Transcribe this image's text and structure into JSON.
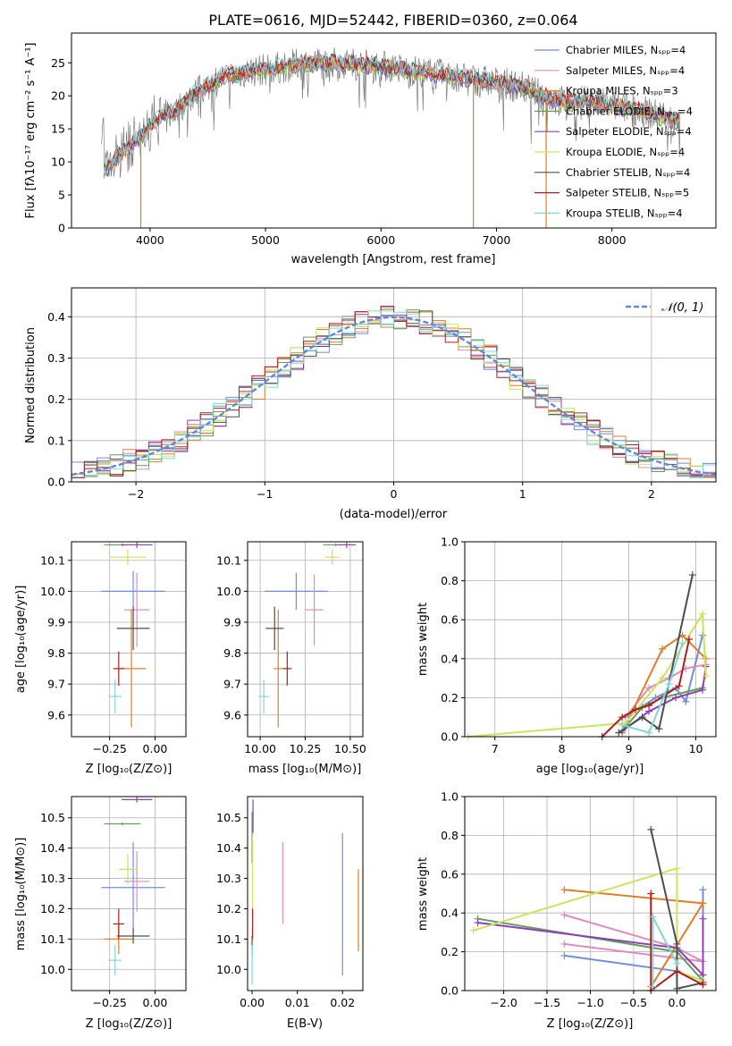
{
  "colors": [
    "#6d8fd8",
    "#e08bbf",
    "#de7f28",
    "#5f9e5b",
    "#8f3fb3",
    "#c9e55a",
    "#4d4d4d",
    "#b51c1c",
    "#7fd8d8"
  ],
  "chart_data": [
    {
      "id": "spectrum",
      "type": "line",
      "title": "PLATE=0616, MJD=52442, FIBERID=0360, z=0.064",
      "xlabel": "wavelength [Angstrom, rest frame]",
      "ylabel": "Flux [fλ10⁻¹⁷ erg cm⁻² s⁻¹ A⁻¹]",
      "xlim": [
        3320,
        8900
      ],
      "ylim": [
        0,
        29.5
      ],
      "xticks": [
        4000,
        5000,
        6000,
        7000,
        8000
      ],
      "yticks": [
        0,
        5,
        10,
        15,
        20,
        25
      ],
      "legend_position": "right",
      "legend": [
        "Chabrier MILES, Nₛₚₚ=4",
        "Salpeter MILES, Nₛₚₚ=4",
        "Kroupa MILES, Nₛₚₚ=3",
        "Chabrier ELODIE, Nₛₚₚ=4",
        "Salpeter ELODIE, Nₛₚₚ=4",
        "Kroupa ELODIE, Nₛₚₚ=4",
        "Chabrier STELIB, Nₛₚₚ=4",
        "Salpeter STELIB, Nₛₚₚ=5",
        "Kroupa STELIB, Nₛₚₚ=4"
      ],
      "continuum": {
        "x": [
          3600,
          3700,
          3800,
          3900,
          4000,
          4100,
          4200,
          4300,
          4400,
          4500,
          4600,
          4800,
          5000,
          5200,
          5400,
          5600,
          5800,
          6000,
          6200,
          6400,
          6600,
          6800,
          7000,
          7200,
          7400,
          7600,
          7800,
          8000,
          8200,
          8400,
          8600
        ],
        "y": [
          8.5,
          10.5,
          12.2,
          13.5,
          15.5,
          17.0,
          17.5,
          19.0,
          20.5,
          21.5,
          22.5,
          23.5,
          24.0,
          24.5,
          25.0,
          25.0,
          24.8,
          24.5,
          24.0,
          23.5,
          23.0,
          22.5,
          22.0,
          21.5,
          20.0,
          19.0,
          19.2,
          18.5,
          18.0,
          17.0,
          16.0
        ]
      },
      "dips": [
        {
          "series": "Kroupa MILES",
          "x": 3920,
          "y": 0
        },
        {
          "series": "Kroupa MILES",
          "x": 6800,
          "y": 0
        },
        {
          "series": "Kroupa MILES",
          "x": 7430,
          "y": 0
        }
      ]
    },
    {
      "id": "residuals",
      "type": "histogram",
      "xlabel": "(data-model)/error",
      "ylabel": "Normed distribution",
      "xlim": [
        -2.5,
        2.5
      ],
      "ylim": [
        0,
        0.47
      ],
      "xticks": [
        -2,
        -1,
        0,
        1,
        2
      ],
      "yticks": [
        0.0,
        0.1,
        0.2,
        0.3,
        0.4
      ],
      "grid": true,
      "reference_curve": "𝒩(0, 1)",
      "legend_position": "top-right",
      "bin_width": 0.1
    },
    {
      "id": "age-vs-Z",
      "type": "scatter",
      "xlabel": "Z [log₁₀(Z/Z⊙)]",
      "ylabel": "age  [log₁₀(age/yr)]",
      "xlim": [
        -0.46,
        0.17
      ],
      "ylim": [
        9.53,
        10.16
      ],
      "xticks": [
        -0.25,
        0.0
      ],
      "yticks": [
        9.6,
        9.7,
        9.8,
        9.9,
        10.0,
        10.1
      ],
      "grid": true,
      "points": [
        {
          "x": -0.12,
          "y": 10.0,
          "xerr": 0.35,
          "yerr": 0.13
        },
        {
          "x": -0.1,
          "y": 9.94,
          "xerr": 0.14,
          "yerr": 0.24
        },
        {
          "x": -0.13,
          "y": 9.75,
          "xerr": 0.16,
          "yerr": 0.38
        },
        {
          "x": -0.18,
          "y": 10.15,
          "xerr": 0.2,
          "yerr": 0.01
        },
        {
          "x": -0.1,
          "y": 10.15,
          "xerr": 0.17,
          "yerr": 0.02
        },
        {
          "x": -0.15,
          "y": 10.11,
          "xerr": 0.2,
          "yerr": 0.05
        },
        {
          "x": -0.12,
          "y": 9.88,
          "xerr": 0.18,
          "yerr": 0.14
        },
        {
          "x": -0.2,
          "y": 9.75,
          "xerr": 0.06,
          "yerr": 0.11
        },
        {
          "x": -0.22,
          "y": 9.66,
          "xerr": 0.07,
          "yerr": 0.11
        }
      ]
    },
    {
      "id": "age-vs-mass",
      "type": "scatter",
      "xlabel": "mass [log₁₀(M/M⊙)]",
      "ylabel": "",
      "xlim": [
        9.93,
        10.57
      ],
      "ylim": [
        9.53,
        10.16
      ],
      "xticks": [
        10.0,
        10.25,
        10.5
      ],
      "yticks": [
        9.6,
        9.7,
        9.8,
        9.9,
        10.0,
        10.1
      ],
      "grid": true
    },
    {
      "id": "weight-vs-age",
      "type": "line",
      "xlabel": "age  [log₁₀(age/yr)]",
      "ylabel": "mass weight",
      "xlim": [
        6.55,
        10.3
      ],
      "ylim": [
        0,
        1
      ],
      "xticks": [
        7,
        8,
        9,
        10
      ],
      "yticks": [
        0.0,
        0.2,
        0.4,
        0.6,
        0.8,
        1.0
      ],
      "grid": true,
      "series": [
        {
          "x": [
            8.95,
            9.4,
            9.7,
            9.85,
            10.1
          ],
          "y": [
            0.1,
            0.2,
            0.25,
            0.18,
            0.52
          ]
        },
        {
          "x": [
            8.95,
            9.3,
            9.6,
            9.85,
            10.15
          ],
          "y": [
            0.1,
            0.25,
            0.3,
            0.35,
            0.37
          ]
        },
        {
          "x": [
            8.9,
            9.5,
            9.8,
            10.15
          ],
          "y": [
            0.02,
            0.45,
            0.52,
            0.4
          ]
        },
        {
          "x": [
            8.95,
            9.2,
            9.5,
            10.1
          ],
          "y": [
            0.05,
            0.15,
            0.2,
            0.25
          ]
        },
        {
          "x": [
            8.9,
            9.3,
            9.7,
            10.1,
            10.15
          ],
          "y": [
            0.03,
            0.13,
            0.2,
            0.24,
            0.36
          ]
        },
        {
          "x": [
            6.6,
            8.95,
            9.5,
            10.1,
            10.15
          ],
          "y": [
            0.0,
            0.07,
            0.3,
            0.63,
            0.31
          ]
        },
        {
          "x": [
            8.85,
            9.2,
            9.45,
            9.95
          ],
          "y": [
            0.02,
            0.1,
            0.04,
            0.83
          ]
        },
        {
          "x": [
            8.6,
            8.9,
            9.1,
            9.3,
            9.75,
            9.9
          ],
          "y": [
            0.0,
            0.1,
            0.14,
            0.16,
            0.26,
            0.5
          ]
        },
        {
          "x": [
            8.9,
            9.3,
            9.6,
            9.8
          ],
          "y": [
            0.06,
            0.02,
            0.27,
            0.48
          ]
        }
      ]
    },
    {
      "id": "mass-vs-Z",
      "type": "scatter",
      "xlabel": "Z [log₁₀(Z/Z⊙)]",
      "ylabel": "mass [log₁₀(M/M⊙)]",
      "xlim": [
        -0.46,
        0.17
      ],
      "ylim": [
        9.93,
        10.57
      ],
      "xticks": [
        -0.25,
        0.0
      ],
      "yticks": [
        10.0,
        10.1,
        10.2,
        10.3,
        10.4,
        10.5
      ],
      "grid": true
    },
    {
      "id": "mass-vs-ebv",
      "type": "scatter",
      "xlabel": "E(B-V)",
      "ylabel": "",
      "xlim": [
        -0.001,
        0.0245
      ],
      "ylim": [
        9.93,
        10.57
      ],
      "xticks": [
        0.0,
        0.01,
        0.02
      ],
      "yticks": [
        10.0,
        10.1,
        10.2,
        10.3,
        10.4,
        10.5
      ],
      "grid": false,
      "points": [
        {
          "x": 0.02,
          "y0": 9.98,
          "y1": 10.45
        },
        {
          "x": 0.0068,
          "y0": 10.15,
          "y1": 10.42
        },
        {
          "x": 0.0235,
          "y0": 10.06,
          "y1": 10.33
        },
        {
          "x": 0.0,
          "y0": 10.35,
          "y1": 10.52
        },
        {
          "x": 0.0002,
          "y0": 10.45,
          "y1": 10.56
        },
        {
          "x": 0.0001,
          "y0": 10.2,
          "y1": 10.44
        },
        {
          "x": 0.0,
          "y0": 10.05,
          "y1": 10.11
        },
        {
          "x": 0.0001,
          "y0": 10.1,
          "y1": 10.2
        },
        {
          "x": 0.0,
          "y0": 9.95,
          "y1": 10.08
        }
      ]
    },
    {
      "id": "weight-vs-Z",
      "type": "line",
      "xlabel": "Z [log₁₀(Z/Z⊙)]",
      "ylabel": "mass weight",
      "xlim": [
        -2.45,
        0.45
      ],
      "ylim": [
        0,
        1
      ],
      "xticks": [
        -2.0,
        -1.5,
        -1.0,
        -0.5,
        0.0
      ],
      "yticks": [
        0.0,
        0.2,
        0.4,
        0.6,
        0.8,
        1.0
      ],
      "grid": true,
      "series": [
        {
          "x": [
            -1.3,
            0.0,
            0.3,
            0.3
          ],
          "y": [
            0.18,
            0.1,
            0.05,
            0.52
          ]
        },
        {
          "x": [
            -1.3,
            0.0,
            0.3,
            -1.3
          ],
          "y": [
            0.39,
            0.22,
            0.15,
            0.24
          ]
        },
        {
          "x": [
            -1.3,
            0.3,
            -0.3
          ],
          "y": [
            0.52,
            0.45,
            0.02
          ]
        },
        {
          "x": [
            -2.3,
            0.0,
            0.3
          ],
          "y": [
            0.37,
            0.2,
            0.05
          ]
        },
        {
          "x": [
            -2.3,
            0.0,
            0.3,
            0.3
          ],
          "y": [
            0.35,
            0.22,
            0.08,
            0.37
          ]
        },
        {
          "x": [
            -2.35,
            0.0,
            0.0,
            0.3
          ],
          "y": [
            0.31,
            0.63,
            0.1,
            0.05
          ]
        },
        {
          "x": [
            -0.3,
            0.0,
            0.0,
            0.3
          ],
          "y": [
            0.83,
            0.24,
            0.01,
            0.04
          ]
        },
        {
          "x": [
            -0.3,
            -0.3,
            0.0,
            0.3
          ],
          "y": [
            0.5,
            0.0,
            0.1,
            0.03
          ]
        },
        {
          "x": [
            -0.28,
            -0.28,
            0.0
          ],
          "y": [
            0.02,
            0.38,
            0.14
          ]
        }
      ]
    }
  ]
}
